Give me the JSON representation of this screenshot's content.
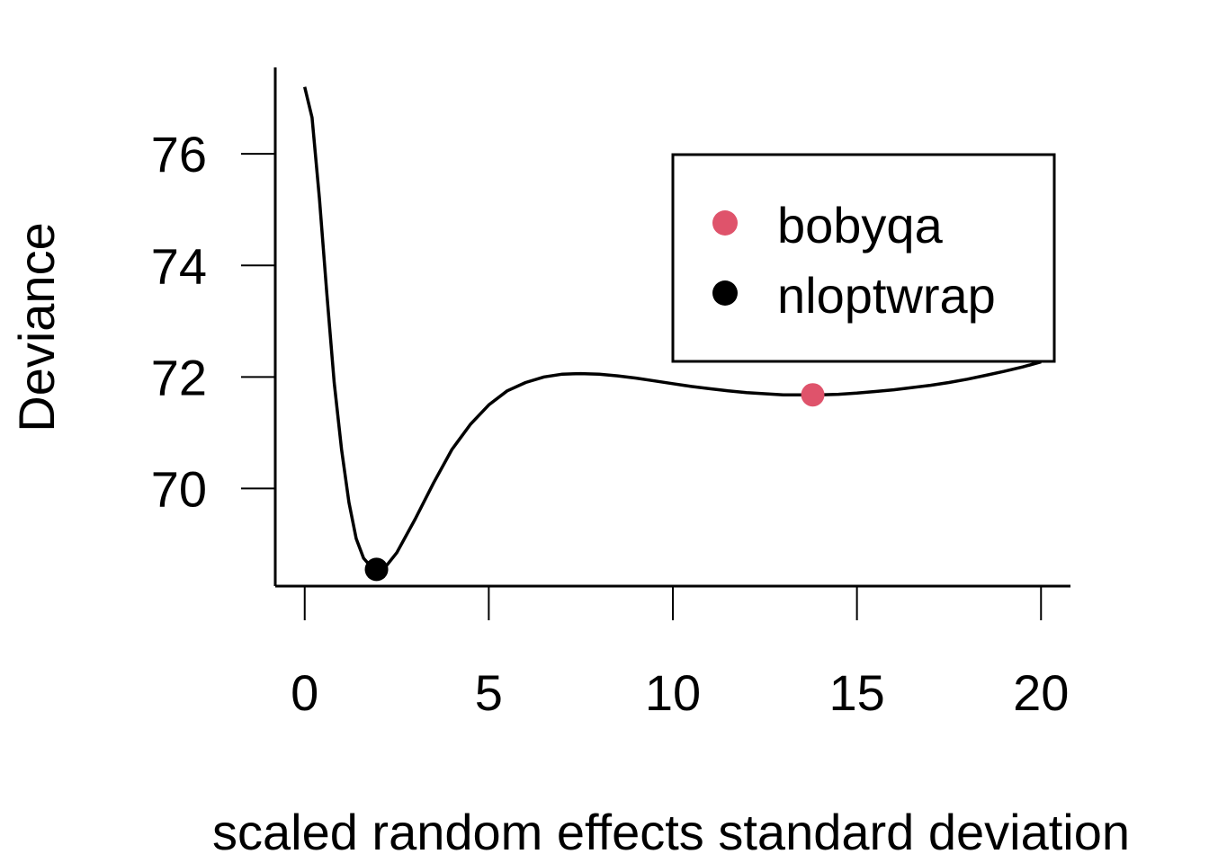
{
  "chart_data": {
    "type": "line",
    "xlabel": "scaled random effects standard deviation",
    "ylabel": "Deviance",
    "xlim": [
      -0.8,
      20.8
    ],
    "ylim": [
      68.25,
      77.55
    ],
    "xticks": [
      0,
      5,
      10,
      15,
      20
    ],
    "yticks": [
      70,
      72,
      74,
      76
    ],
    "curve": {
      "color": "#000000",
      "x": [
        0.0,
        0.2,
        0.4,
        0.6,
        0.8,
        1.0,
        1.2,
        1.4,
        1.6,
        1.8,
        2.0,
        2.2,
        2.5,
        3.0,
        3.5,
        4.0,
        4.5,
        5.0,
        5.5,
        6.0,
        6.5,
        7.0,
        7.5,
        8.0,
        8.5,
        9.0,
        9.5,
        10.0,
        10.5,
        11.0,
        11.5,
        12.0,
        12.5,
        13.0,
        13.5,
        14.0,
        14.5,
        15.0,
        15.5,
        16.0,
        16.5,
        17.0,
        17.5,
        18.0,
        18.5,
        19.0,
        19.5,
        20.0
      ],
      "y": [
        77.2,
        76.65,
        75.2,
        73.5,
        71.9,
        70.7,
        69.75,
        69.1,
        68.75,
        68.6,
        68.55,
        68.6,
        68.85,
        69.45,
        70.1,
        70.7,
        71.15,
        71.5,
        71.75,
        71.9,
        72.0,
        72.05,
        72.06,
        72.05,
        72.02,
        71.98,
        71.93,
        71.88,
        71.83,
        71.79,
        71.75,
        71.72,
        71.7,
        71.68,
        71.68,
        71.68,
        71.69,
        71.71,
        71.74,
        71.77,
        71.81,
        71.85,
        71.9,
        71.96,
        72.03,
        72.1,
        72.18,
        72.27
      ]
    },
    "points": [
      {
        "name": "bobyqa",
        "x": 13.8,
        "y": 71.68,
        "color": "#DF536B"
      },
      {
        "name": "nloptwrap",
        "x": 1.95,
        "y": 68.55,
        "color": "#000000"
      }
    ],
    "legend": {
      "position": "top-right",
      "entries": [
        {
          "label": "bobyqa",
          "color": "#DF536B"
        },
        {
          "label": "nloptwrap",
          "color": "#000000"
        }
      ]
    }
  }
}
